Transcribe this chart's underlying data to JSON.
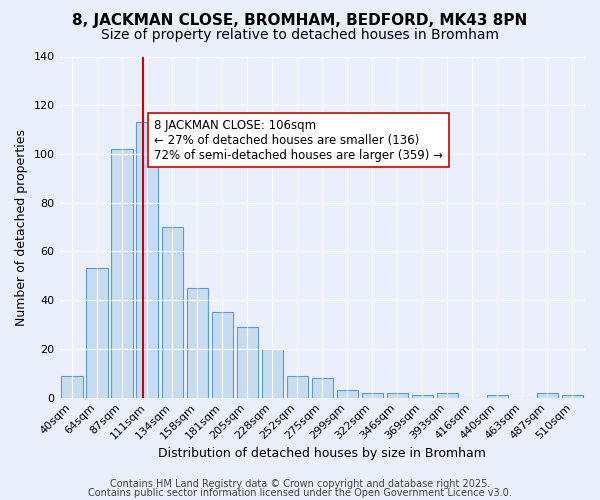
{
  "title": "8, JACKMAN CLOSE, BROMHAM, BEDFORD, MK43 8PN",
  "subtitle": "Size of property relative to detached houses in Bromham",
  "xlabel": "Distribution of detached houses by size in Bromham",
  "ylabel": "Number of detached properties",
  "categories": [
    "40sqm",
    "64sqm",
    "87sqm",
    "111sqm",
    "134sqm",
    "158sqm",
    "181sqm",
    "205sqm",
    "228sqm",
    "252sqm",
    "275sqm",
    "299sqm",
    "322sqm",
    "346sqm",
    "369sqm",
    "393sqm",
    "416sqm",
    "440sqm",
    "463sqm",
    "487sqm",
    "510sqm"
  ],
  "values": [
    9,
    53,
    102,
    113,
    70,
    45,
    35,
    29,
    20,
    9,
    8,
    3,
    2,
    2,
    1,
    2,
    0,
    1,
    0,
    2,
    1
  ],
  "bar_color": "#c8dcf0",
  "bar_edge_color": "#5b9bd5",
  "vline_x": 2.85,
  "vline_color": "#cc0000",
  "annotation_line1": "8 JACKMAN CLOSE: 106sqm",
  "annotation_line2": "← 27% of detached houses are smaller (136)",
  "annotation_line3": "72% of semi-detached houses are larger (359) →",
  "ylim": [
    0,
    140
  ],
  "yticks": [
    0,
    20,
    40,
    60,
    80,
    100,
    120,
    140
  ],
  "bg_color": "#eaf0fb",
  "plot_bg_color": "#eaf0fb",
  "footer1": "Contains HM Land Registry data © Crown copyright and database right 2025.",
  "footer2": "Contains public sector information licensed under the Open Government Licence v3.0.",
  "title_fontsize": 11,
  "subtitle_fontsize": 10,
  "axis_label_fontsize": 9,
  "tick_fontsize": 8,
  "annotation_fontsize": 8.5,
  "footer_fontsize": 7
}
